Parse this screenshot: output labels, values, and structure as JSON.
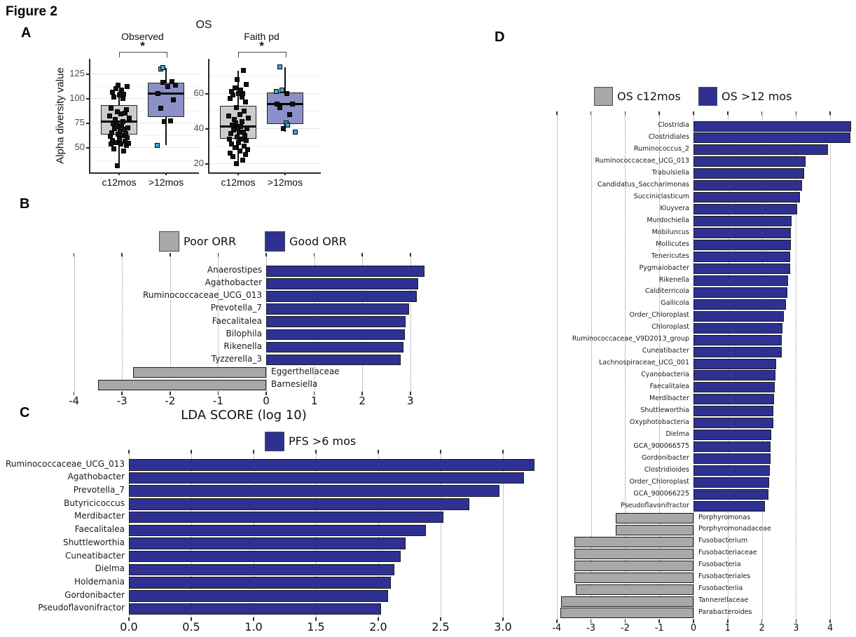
{
  "figure_title": "Figure 2",
  "panel_labels": {
    "a": "A",
    "b": "B",
    "c": "C",
    "d": "D"
  },
  "colors": {
    "blue_bar": "#2e3192",
    "gray_bar": "#a8a8a8",
    "box_gray": "#cccccc",
    "box_purple": "#8c90c8",
    "teal_point": "#3fa9cc",
    "black_point": "#121212"
  },
  "chart_data": {
    "panelA": {
      "type": "boxplot",
      "title": "OS",
      "ylabel": "Alpha diversity value",
      "significance": "*",
      "categories": [
        "c12mos",
        ">12mos"
      ],
      "subplots": [
        {
          "title": "Observed",
          "yticks": [
            "50",
            "75",
            "100",
            "125"
          ],
          "ytick_values": [
            50,
            75,
            100,
            125
          ],
          "groups": [
            {
              "label": "c12mos",
              "fill": "#cccccc",
              "box": {
                "lo": 31,
                "q1": 63,
                "median": 76,
                "q3": 93,
                "hi": 107
              },
              "points_black": [
                31,
                46,
                48,
                52,
                53,
                53,
                54,
                55,
                56,
                57,
                58,
                60,
                61,
                62,
                63,
                64,
                65,
                66,
                68,
                69,
                70,
                71,
                72,
                74,
                75,
                76,
                78,
                80,
                82,
                84,
                85,
                86,
                88,
                90,
                100,
                101,
                103,
                104,
                106,
                108,
                110,
                112,
                113
              ],
              "points_teal": []
            },
            {
              "label": ">12mos",
              "fill": "#8c90c8",
              "box": {
                "lo": 52,
                "q1": 81,
                "median": 105,
                "q3": 116,
                "hi": 131
              },
              "points_black": [
                76,
                77,
                90,
                98,
                105,
                112,
                113,
                116,
                117
              ],
              "points_teal": [
                130,
                131,
                52
              ]
            }
          ]
        },
        {
          "title": "Faith pd",
          "yticks": [
            "20",
            "40",
            "60"
          ],
          "ytick_values": [
            20,
            40,
            60
          ],
          "groups": [
            {
              "label": "c12mos",
              "fill": "#cccccc",
              "box": {
                "lo": 20,
                "q1": 34,
                "median": 41,
                "q3": 53,
                "hi": 73
              },
              "points_black": [
                20,
                22,
                24,
                25,
                26,
                27,
                28,
                29,
                30,
                31,
                32,
                33,
                34,
                34,
                35,
                36,
                37,
                38,
                38,
                39,
                40,
                40,
                41,
                42,
                43,
                44,
                45,
                46,
                47,
                48,
                50,
                52,
                55,
                57,
                58,
                59,
                60,
                60,
                61,
                62,
                63,
                65,
                68,
                73
              ],
              "points_teal": []
            },
            {
              "label": ">12mos",
              "fill": "#8c90c8",
              "box": {
                "lo": 38,
                "q1": 42.5,
                "median": 54,
                "q3": 60.5,
                "hi": 75
              },
              "points_black": [
                40,
                48,
                52,
                54,
                54,
                60
              ],
              "points_teal": [
                75,
                62,
                61,
                43,
                42,
                38
              ]
            }
          ]
        }
      ]
    },
    "panelB": {
      "type": "bar",
      "xlabel": "LDA SCORE (log 10)",
      "xticks": [
        "-4",
        "-3",
        "-2",
        "-1",
        "0",
        "1",
        "2",
        "3"
      ],
      "xtick_values": [
        -4,
        -3,
        -2,
        -1,
        0,
        1,
        2,
        3
      ],
      "legend": [
        {
          "label": "Poor ORR",
          "color": "#a8a8a8"
        },
        {
          "label": "Good ORR",
          "color": "#2e3192"
        }
      ],
      "bars": [
        {
          "label": "Anaerostipes",
          "value": 3.3,
          "series": 1
        },
        {
          "label": "Agathobacter",
          "value": 3.17,
          "series": 1
        },
        {
          "label": "Ruminococcaceae_UCG_013",
          "value": 3.13,
          "series": 1
        },
        {
          "label": "Prevotella_7",
          "value": 2.97,
          "series": 1
        },
        {
          "label": "Faecalitalea",
          "value": 2.9,
          "series": 1
        },
        {
          "label": "Bilophila",
          "value": 2.89,
          "series": 1
        },
        {
          "label": "Rikenella",
          "value": 2.85,
          "series": 1
        },
        {
          "label": "Tyzzerella_3",
          "value": 2.8,
          "series": 1
        },
        {
          "label": "Eggerthellaceae",
          "value": -2.77,
          "series": 0
        },
        {
          "label": "Barnesiella",
          "value": -3.5,
          "series": 0
        }
      ]
    },
    "panelC": {
      "type": "bar",
      "xticks": [
        "0.0",
        "0.5",
        "1.0",
        "1.5",
        "2.0",
        "2.5",
        "3.0"
      ],
      "xtick_values": [
        0,
        0.5,
        1,
        1.5,
        2,
        2.5,
        3
      ],
      "legend": [
        {
          "label": "PFS >6 mos",
          "color": "#2e3192"
        }
      ],
      "bars": [
        {
          "label": "Ruminococcaceae_UCG_013",
          "value": 3.25,
          "series": 0
        },
        {
          "label": "Agathobacter",
          "value": 3.17,
          "series": 0
        },
        {
          "label": "Prevotella_7",
          "value": 2.97,
          "series": 0
        },
        {
          "label": "Butyricicoccus",
          "value": 2.73,
          "series": 0
        },
        {
          "label": "Merdibacter",
          "value": 2.52,
          "series": 0
        },
        {
          "label": "Faecalitalea",
          "value": 2.38,
          "series": 0
        },
        {
          "label": "Shuttleworthia",
          "value": 2.22,
          "series": 0
        },
        {
          "label": "Cuneatibacter",
          "value": 2.18,
          "series": 0
        },
        {
          "label": "Dielma",
          "value": 2.13,
          "series": 0
        },
        {
          "label": "Holdemania",
          "value": 2.1,
          "series": 0
        },
        {
          "label": "Gordonibacter",
          "value": 2.08,
          "series": 0
        },
        {
          "label": "Pseudoflavonifractor",
          "value": 2.02,
          "series": 0
        }
      ]
    },
    "panelD": {
      "type": "bar",
      "xticks": [
        "-4",
        "-3",
        "-2",
        "-1",
        "0",
        "1",
        "2",
        "3",
        "4"
      ],
      "xtick_values": [
        -4,
        -3,
        -2,
        -1,
        0,
        1,
        2,
        3,
        4
      ],
      "legend": [
        {
          "label": "OS c12mos",
          "color": "#a8a8a8"
        },
        {
          "label": "OS >12 mos",
          "color": "#2e3192"
        }
      ],
      "bars": [
        {
          "label": "Clostridia",
          "value": 4.62,
          "series": 1
        },
        {
          "label": "Clostridiales",
          "value": 4.6,
          "series": 1
        },
        {
          "label": "Ruminococcus_2",
          "value": 3.93,
          "series": 1
        },
        {
          "label": "Ruminococcaceae_UCG_013",
          "value": 3.27,
          "series": 1
        },
        {
          "label": "Trabulsiella",
          "value": 3.24,
          "series": 1
        },
        {
          "label": "Candidatus_Saccharimonas",
          "value": 3.17,
          "series": 1
        },
        {
          "label": "Succiniclasticum",
          "value": 3.12,
          "series": 1
        },
        {
          "label": "Kluyvera",
          "value": 3.03,
          "series": 1
        },
        {
          "label": "Murdochiella",
          "value": 2.86,
          "series": 1
        },
        {
          "label": "Mobiluncus",
          "value": 2.85,
          "series": 1
        },
        {
          "label": "Mollicutes",
          "value": 2.84,
          "series": 1
        },
        {
          "label": "Tenericutes",
          "value": 2.83,
          "series": 1
        },
        {
          "label": "Pygmaiobacter",
          "value": 2.82,
          "series": 1
        },
        {
          "label": "Rikenella",
          "value": 2.77,
          "series": 1
        },
        {
          "label": "Calditerricola",
          "value": 2.74,
          "series": 1
        },
        {
          "label": "Gallicola",
          "value": 2.7,
          "series": 1
        },
        {
          "label": "Order_Chloroplast",
          "value": 2.64,
          "series": 1
        },
        {
          "label": "Chloroplast",
          "value": 2.6,
          "series": 1
        },
        {
          "label": "Ruminococcaceae_V9D2013_group",
          "value": 2.59,
          "series": 1
        },
        {
          "label": "Cuneatibacter",
          "value": 2.58,
          "series": 1
        },
        {
          "label": "Lachnospiraceae_UCG_001",
          "value": 2.41,
          "series": 1
        },
        {
          "label": "Cyanobacteria",
          "value": 2.39,
          "series": 1
        },
        {
          "label": "Faecalitalea",
          "value": 2.38,
          "series": 1
        },
        {
          "label": "Merdibacter",
          "value": 2.35,
          "series": 1
        },
        {
          "label": "Shuttleworthia",
          "value": 2.34,
          "series": 1
        },
        {
          "label": "Oxyphotobacteria",
          "value": 2.33,
          "series": 1
        },
        {
          "label": "Dielma",
          "value": 2.28,
          "series": 1
        },
        {
          "label": "GCA_900066575",
          "value": 2.26,
          "series": 1
        },
        {
          "label": "Gordonibacter",
          "value": 2.25,
          "series": 1
        },
        {
          "label": "Clostridioides",
          "value": 2.23,
          "series": 1
        },
        {
          "label": "Order_Chloroplast",
          "value": 2.21,
          "series": 1
        },
        {
          "label": "GCA_900066225",
          "value": 2.19,
          "series": 1
        },
        {
          "label": "Pseudoflavonifractor",
          "value": 2.09,
          "series": 1
        },
        {
          "label": "Porphyromonas",
          "value": -2.27,
          "series": 0
        },
        {
          "label": "Porphyromonadaceae",
          "value": -2.27,
          "series": 0
        },
        {
          "label": "Fusobacterium",
          "value": -3.49,
          "series": 0
        },
        {
          "label": "Fusobacteriaceae",
          "value": -3.49,
          "series": 0
        },
        {
          "label": "Fusobacteria",
          "value": -3.49,
          "series": 0
        },
        {
          "label": "Fusobacteriales",
          "value": -3.49,
          "series": 0
        },
        {
          "label": "Fusobacteriia",
          "value": -3.45,
          "series": 0
        },
        {
          "label": "Tannerellaceae",
          "value": -3.88,
          "series": 0
        },
        {
          "label": "Parabacteroides",
          "value": -3.89,
          "series": 0
        }
      ]
    }
  }
}
